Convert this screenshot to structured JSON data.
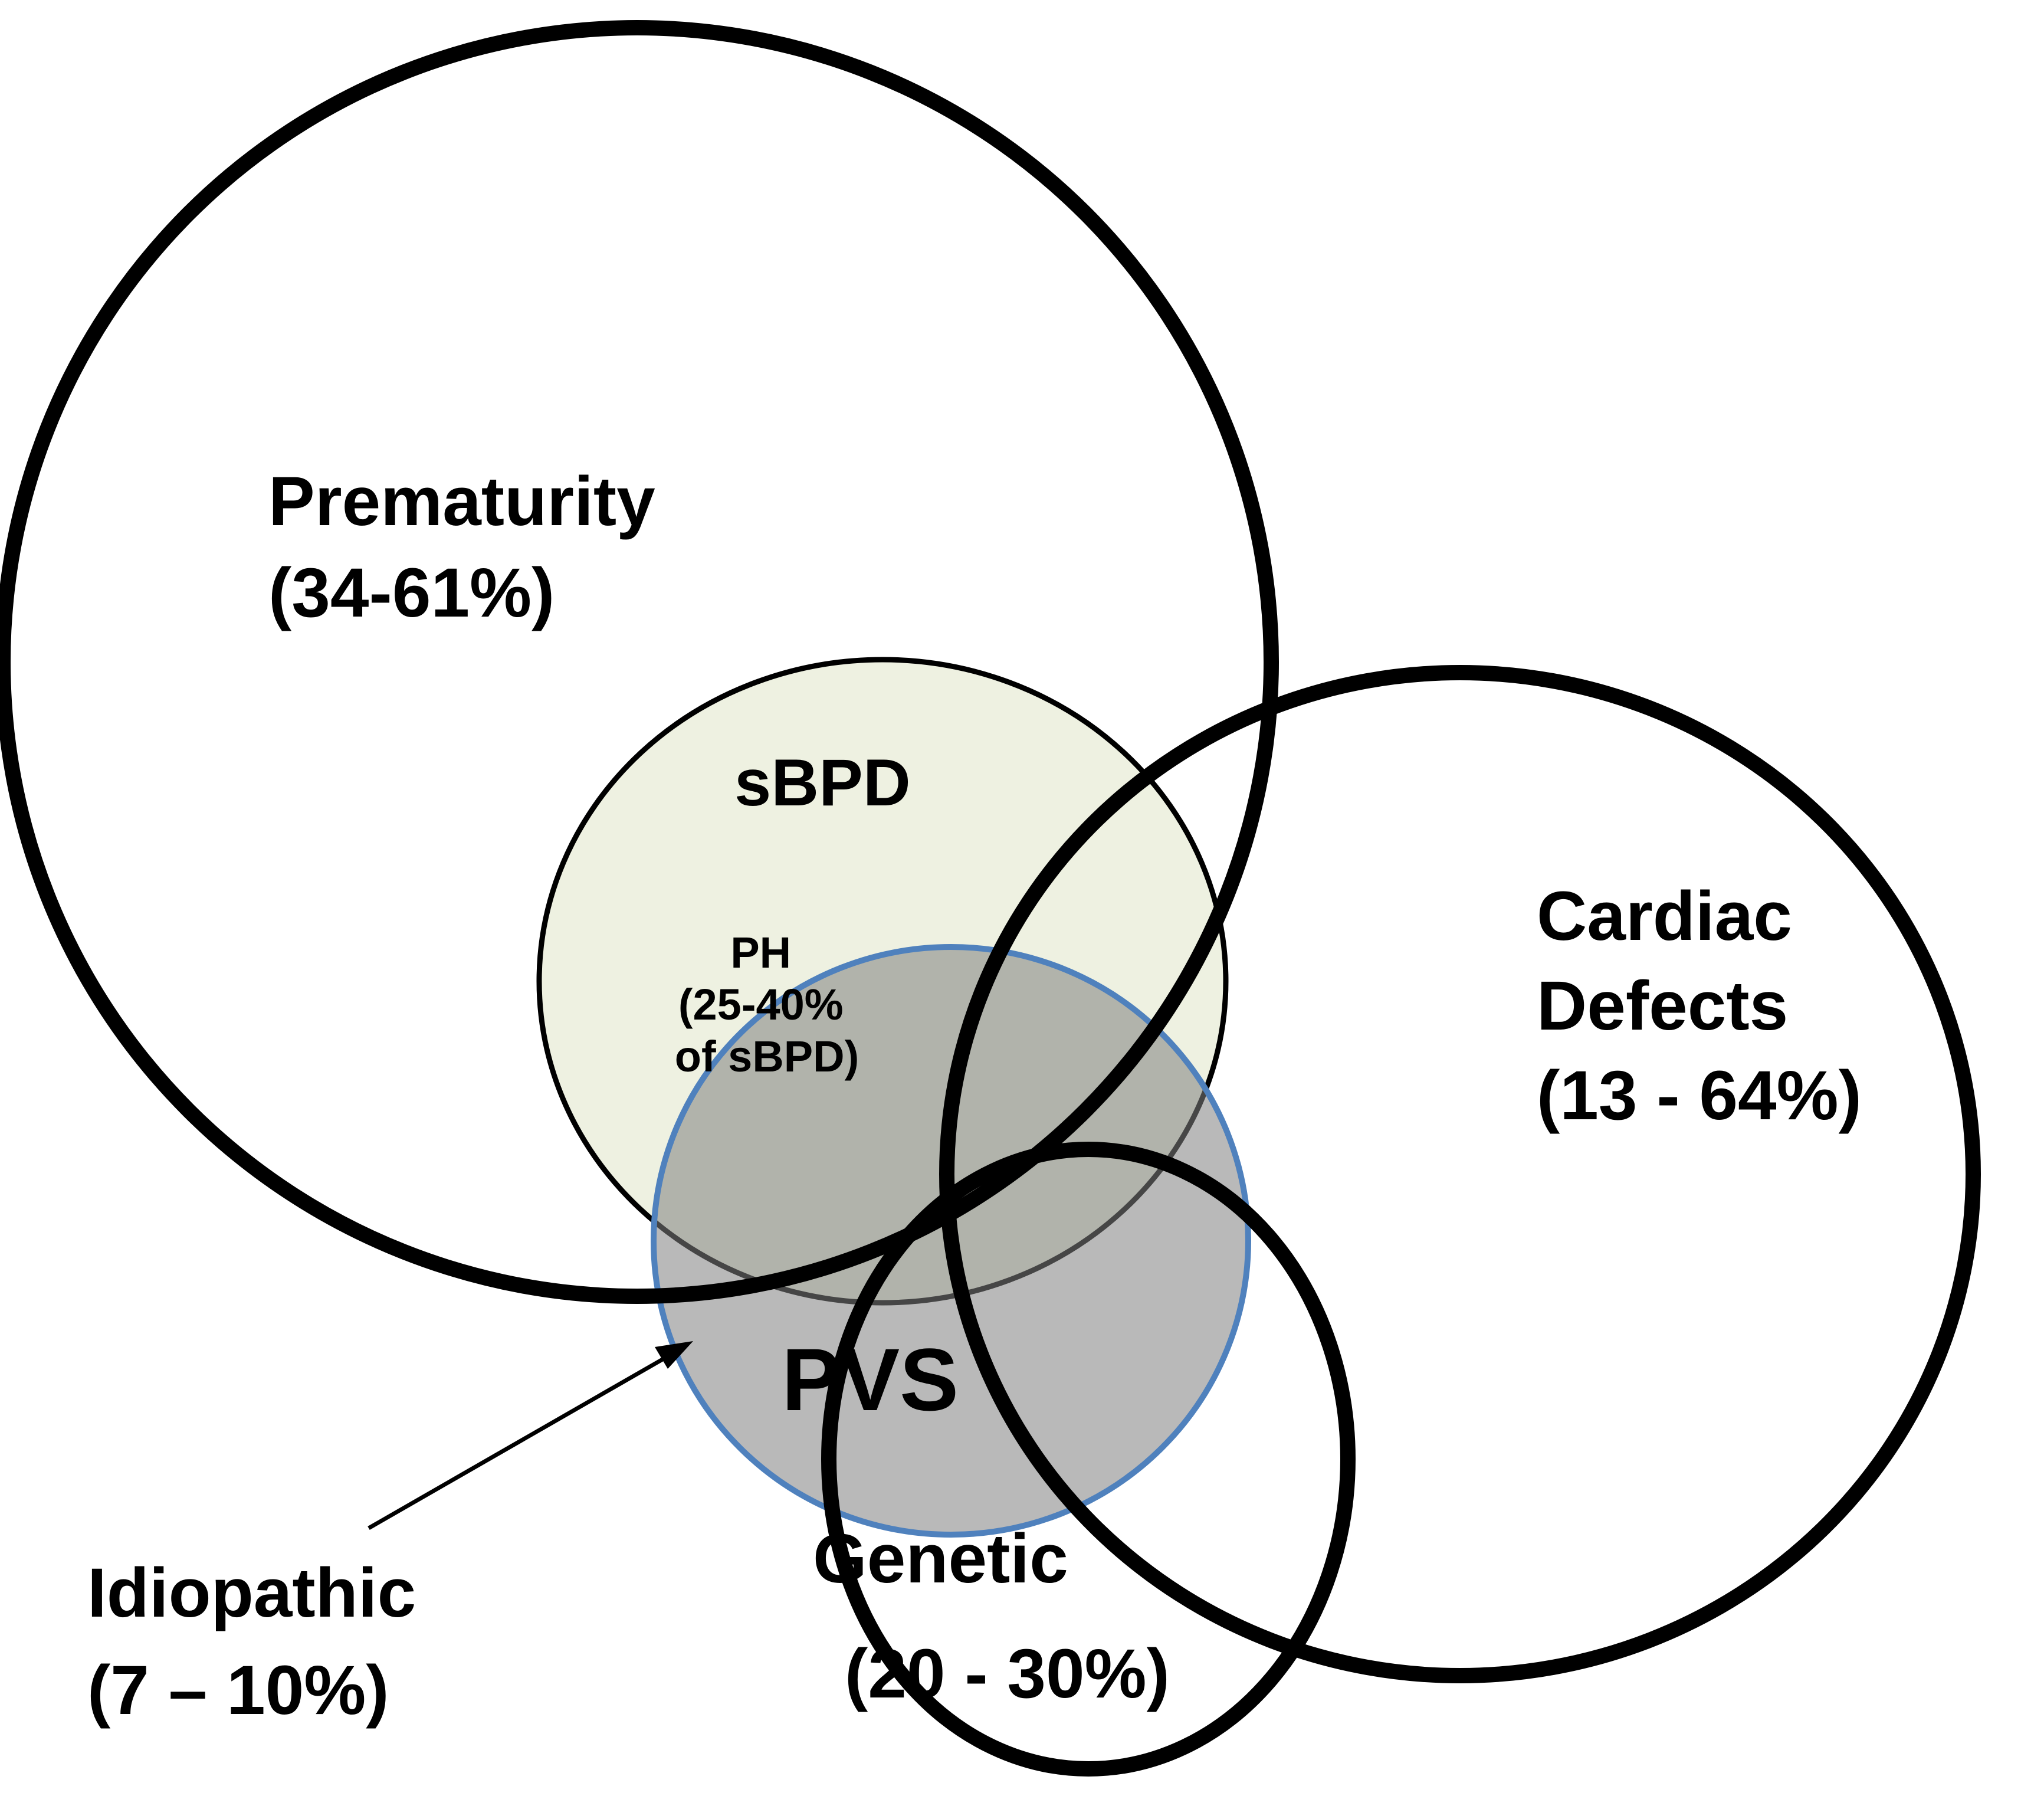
{
  "diagram": {
    "sets": [
      {
        "key": "prematurity",
        "lines": [
          "Prematurity",
          "(34-61%)"
        ]
      },
      {
        "key": "sbpd",
        "lines": [
          "sBPD"
        ]
      },
      {
        "key": "ph",
        "lines": [
          "PH",
          "(25-40%",
          "of sBPD)"
        ]
      },
      {
        "key": "cardiac",
        "lines": [
          "Cardiac",
          "Defects",
          "(13 - 64%)"
        ]
      },
      {
        "key": "pvs",
        "lines": [
          "PVS"
        ]
      },
      {
        "key": "genetic",
        "lines": [
          "Genetic",
          "(20 - 30%)"
        ]
      },
      {
        "key": "idiopathic",
        "lines": [
          "Idiopathic",
          "(7 – 10%)"
        ]
      }
    ],
    "colors": {
      "sbpd_fill": "#EEF1E1",
      "pvs_fill": "#808080",
      "pvs_stroke": "#4F81BD",
      "outline": "#000000"
    }
  }
}
